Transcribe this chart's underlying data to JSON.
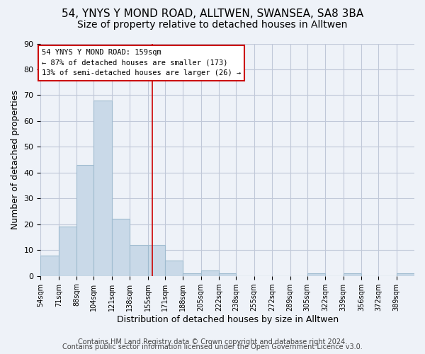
{
  "title_line1": "54, YNYS Y MOND ROAD, ALLTWEN, SWANSEA, SA8 3BA",
  "title_line2": "Size of property relative to detached houses in Alltwen",
  "xlabel": "Distribution of detached houses by size in Alltwen",
  "ylabel": "Number of detached properties",
  "bin_edges": [
    54,
    71,
    88,
    104,
    121,
    138,
    155,
    171,
    188,
    205,
    222,
    238,
    255,
    272,
    289,
    305,
    322,
    339,
    356,
    372,
    389,
    406
  ],
  "bar_heights": [
    8,
    19,
    43,
    68,
    22,
    12,
    12,
    6,
    1,
    2,
    1,
    0,
    0,
    0,
    0,
    1,
    0,
    1,
    0,
    0,
    1
  ],
  "tick_positions": [
    54,
    71,
    88,
    104,
    121,
    138,
    155,
    171,
    188,
    205,
    222,
    238,
    255,
    272,
    289,
    305,
    322,
    339,
    356,
    372,
    389
  ],
  "tick_labels": [
    "54sqm",
    "71sqm",
    "88sqm",
    "104sqm",
    "121sqm",
    "138sqm",
    "155sqm",
    "171sqm",
    "188sqm",
    "205sqm",
    "222sqm",
    "238sqm",
    "255sqm",
    "272sqm",
    "289sqm",
    "305sqm",
    "322sqm",
    "339sqm",
    "356sqm",
    "372sqm",
    "389sqm"
  ],
  "bar_color": "#c9d9e8",
  "bar_edgecolor": "#a0bcd0",
  "grid_color": "#c0c8d8",
  "background_color": "#eef2f8",
  "ref_line_x": 159,
  "ref_line_color": "#cc0000",
  "annotation_text": "54 YNYS Y MOND ROAD: 159sqm\n← 87% of detached houses are smaller (173)\n13% of semi-detached houses are larger (26) →",
  "annotation_box_color": "#ffffff",
  "annotation_box_edgecolor": "#cc0000",
  "ylim": [
    0,
    90
  ],
  "yticks": [
    0,
    10,
    20,
    30,
    40,
    50,
    60,
    70,
    80,
    90
  ],
  "footer_line1": "Contains HM Land Registry data © Crown copyright and database right 2024.",
  "footer_line2": "Contains public sector information licensed under the Open Government Licence v3.0.",
  "title_fontsize": 11,
  "subtitle_fontsize": 10,
  "axis_fontsize": 9,
  "tick_fontsize": 7,
  "footer_fontsize": 7
}
